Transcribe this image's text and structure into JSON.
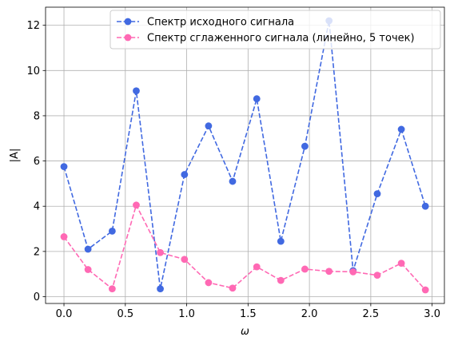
{
  "chart_data": {
    "type": "line",
    "title": "",
    "xlabel": "ω",
    "ylabel": "|A|",
    "xlim": [
      -0.15,
      3.1
    ],
    "ylim": [
      -0.3,
      12.8
    ],
    "x_ticks": [
      "0.0",
      "0.5",
      "1.0",
      "1.5",
      "2.0",
      "2.5",
      "3.0"
    ],
    "y_ticks": [
      "0",
      "2",
      "4",
      "6",
      "8",
      "10",
      "12"
    ],
    "grid": true,
    "legend_position": "upper center",
    "x": [
      0.0,
      0.196,
      0.393,
      0.589,
      0.785,
      0.982,
      1.178,
      1.374,
      1.571,
      1.767,
      1.963,
      2.16,
      2.356,
      2.553,
      2.749,
      2.945
    ],
    "series": [
      {
        "name": "Спектр исходного сигнала",
        "color": "#4169e1",
        "values": [
          5.75,
          2.1,
          2.9,
          9.1,
          0.35,
          5.4,
          7.55,
          5.1,
          8.75,
          2.45,
          6.65,
          12.2,
          1.15,
          4.55,
          7.4,
          4.0
        ]
      },
      {
        "name": "Спектр сглаженного сигнала (линейно, 5 точек)",
        "color": "#ff69b4",
        "values": [
          2.65,
          1.2,
          0.35,
          4.05,
          1.95,
          1.65,
          0.62,
          0.38,
          1.32,
          0.72,
          1.22,
          1.12,
          1.1,
          0.95,
          1.48,
          0.3
        ]
      }
    ]
  }
}
